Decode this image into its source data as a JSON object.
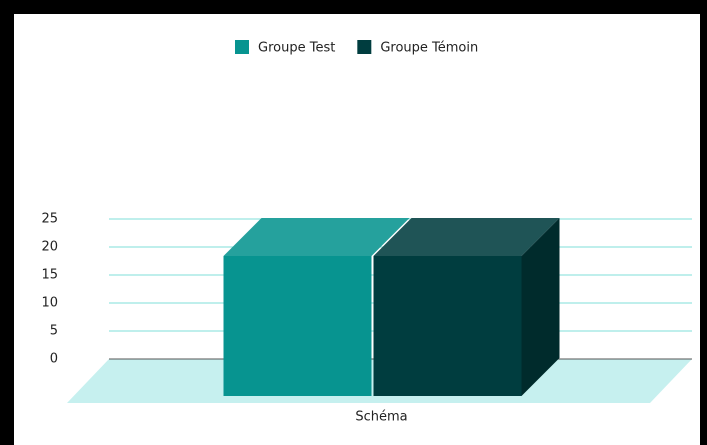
{
  "chart_data": {
    "type": "bar3d",
    "categories": [
      "Schéma"
    ],
    "series": [
      {
        "name": "Groupe Test",
        "color": "#079490",
        "values": [
          25
        ]
      },
      {
        "name": "Groupe Témoin",
        "color": "#003d3f",
        "values": [
          25
        ]
      }
    ],
    "ylim": [
      0,
      25
    ],
    "yticks": [
      0,
      5,
      10,
      15,
      20,
      25
    ],
    "grid": true,
    "legend": "top"
  }
}
